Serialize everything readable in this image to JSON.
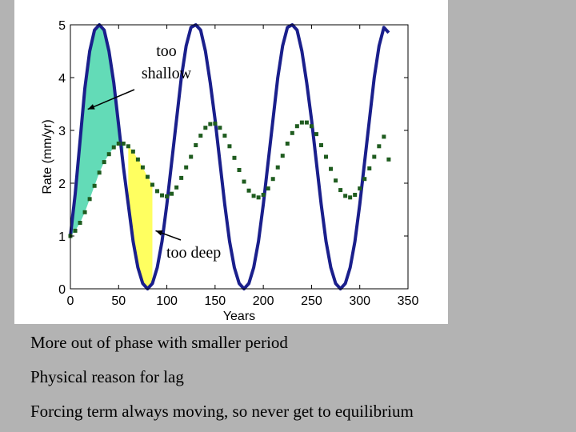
{
  "chart_data": {
    "type": "line",
    "xlabel": "Years",
    "ylabel": "Rate (mm/yr)",
    "xlim": [
      0,
      350
    ],
    "ylim": [
      0,
      5
    ],
    "xticks": [
      0,
      50,
      100,
      150,
      200,
      250,
      300,
      350
    ],
    "yticks": [
      0,
      1,
      2,
      3,
      4,
      5
    ],
    "grid": false,
    "series": [
      {
        "style": "solid",
        "color": "#1a1f8c",
        "x": [
          0,
          5,
          10,
          15,
          20,
          25,
          30,
          35,
          40,
          45,
          50,
          55,
          60,
          65,
          70,
          75,
          80,
          85,
          90,
          95,
          100,
          105,
          110,
          115,
          120,
          125,
          130,
          135,
          140,
          145,
          150,
          155,
          160,
          165,
          170,
          175,
          180,
          185,
          190,
          195,
          200,
          205,
          210,
          215,
          220,
          225,
          230,
          235,
          240,
          245,
          250,
          255,
          260,
          265,
          270,
          275,
          280,
          285,
          290,
          295,
          300,
          305,
          310,
          315,
          320,
          325,
          330
        ],
        "y": [
          1.0,
          1.8,
          2.8,
          3.8,
          4.5,
          4.9,
          5.0,
          4.9,
          4.5,
          3.9,
          3.1,
          2.3,
          1.6,
          0.9,
          0.4,
          0.1,
          0.0,
          0.1,
          0.4,
          0.9,
          1.6,
          2.4,
          3.2,
          4.0,
          4.6,
          4.95,
          5.0,
          4.9,
          4.5,
          3.9,
          3.2,
          2.4,
          1.6,
          0.9,
          0.4,
          0.1,
          0.0,
          0.1,
          0.4,
          0.9,
          1.6,
          2.4,
          3.2,
          4.0,
          4.6,
          4.95,
          5.0,
          4.9,
          4.5,
          3.9,
          3.2,
          2.4,
          1.6,
          0.9,
          0.4,
          0.1,
          0.0,
          0.1,
          0.4,
          0.9,
          1.6,
          2.4,
          3.2,
          4.0,
          4.6,
          4.95,
          4.85
        ]
      },
      {
        "style": "dotted",
        "color": "#1f5c1f",
        "x": [
          0,
          5,
          10,
          15,
          20,
          25,
          30,
          35,
          40,
          45,
          50,
          55,
          60,
          65,
          70,
          75,
          80,
          85,
          90,
          95,
          100,
          105,
          110,
          115,
          120,
          125,
          130,
          135,
          140,
          145,
          150,
          155,
          160,
          165,
          170,
          175,
          180,
          185,
          190,
          195,
          200,
          205,
          210,
          215,
          220,
          225,
          230,
          235,
          240,
          245,
          250,
          255,
          260,
          265,
          270,
          275,
          280,
          285,
          290,
          295,
          300,
          305,
          310,
          315,
          320,
          325,
          330
        ],
        "y": [
          1.0,
          1.1,
          1.25,
          1.45,
          1.7,
          1.95,
          2.2,
          2.4,
          2.55,
          2.68,
          2.75,
          2.75,
          2.7,
          2.6,
          2.45,
          2.3,
          2.12,
          1.97,
          1.85,
          1.77,
          1.75,
          1.8,
          1.92,
          2.1,
          2.3,
          2.5,
          2.72,
          2.9,
          3.05,
          3.12,
          3.13,
          3.05,
          2.9,
          2.7,
          2.48,
          2.25,
          2.03,
          1.86,
          1.76,
          1.73,
          1.78,
          1.9,
          2.08,
          2.3,
          2.52,
          2.75,
          2.95,
          3.08,
          3.15,
          3.15,
          3.08,
          2.93,
          2.72,
          2.5,
          2.27,
          2.05,
          1.87,
          1.76,
          1.73,
          1.78,
          1.9,
          2.08,
          2.28,
          2.5,
          2.7,
          2.88,
          2.45
        ]
      }
    ],
    "annotations": [
      {
        "text": "too",
        "target_x": 18,
        "target_y": 3.4
      },
      {
        "text": "shallow",
        "target_x": 18,
        "target_y": 3.4
      },
      {
        "text": "too deep",
        "target_x": 85,
        "target_y": 1.1
      }
    ],
    "shaded_regions": [
      {
        "color": "#2fcf9f",
        "label": "shallow-fill"
      },
      {
        "color": "#ffff44",
        "label": "deep-fill"
      }
    ]
  },
  "notes": [
    "More out of phase with smaller period",
    "Physical reason for lag",
    "Forcing term always moving, so never get to equilibrium"
  ]
}
